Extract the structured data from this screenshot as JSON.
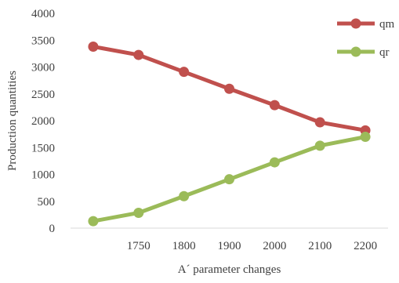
{
  "chart_data": {
    "type": "line",
    "categories": [
      "",
      "1750",
      "1800",
      "1900",
      "2000",
      "2100",
      "2200"
    ],
    "series": [
      {
        "name": "qm",
        "values": [
          3380,
          3225,
          2910,
          2595,
          2290,
          1970,
          1820
        ],
        "color": "#c0504d"
      },
      {
        "name": "qr",
        "values": [
          130,
          285,
          595,
          910,
          1225,
          1535,
          1700
        ],
        "color": "#9bbb59"
      }
    ],
    "xlabel": "A´ parameter changes",
    "ylabel": "Production quantities",
    "ylim": [
      0,
      4000
    ],
    "yticks": [
      0,
      500,
      1000,
      1500,
      2000,
      2500,
      3000,
      3500,
      4000
    ],
    "grid": false,
    "legend": "top-right"
  }
}
